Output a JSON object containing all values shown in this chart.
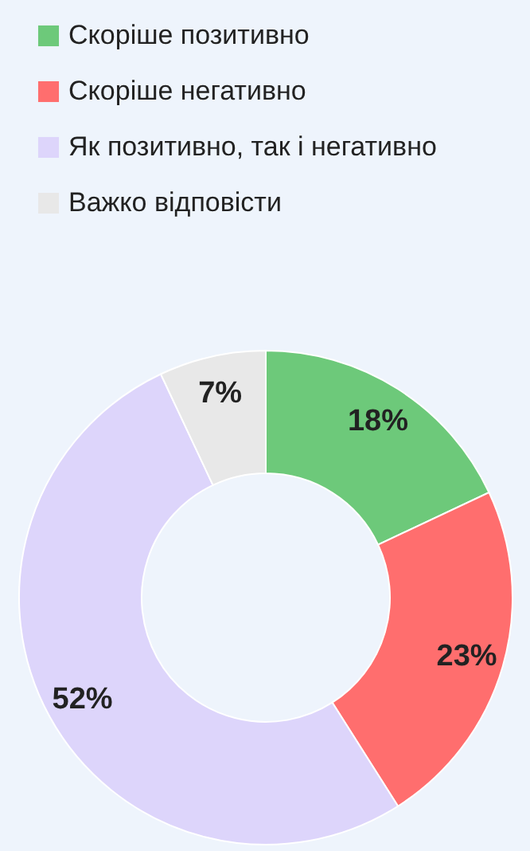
{
  "chart_data": {
    "type": "donut",
    "categories": [
      "Скоріше позитивно",
      "Скоріше негативно",
      "Як позитивно, так і негативно",
      "Важко відповісти"
    ],
    "values": [
      18,
      23,
      52,
      7
    ],
    "colors": [
      "#6dc97a",
      "#ff6e6e",
      "#ddd5fb",
      "#e8e8e8"
    ],
    "value_labels": [
      "18%",
      "23%",
      "52%",
      "7%"
    ],
    "legend": "top left"
  }
}
